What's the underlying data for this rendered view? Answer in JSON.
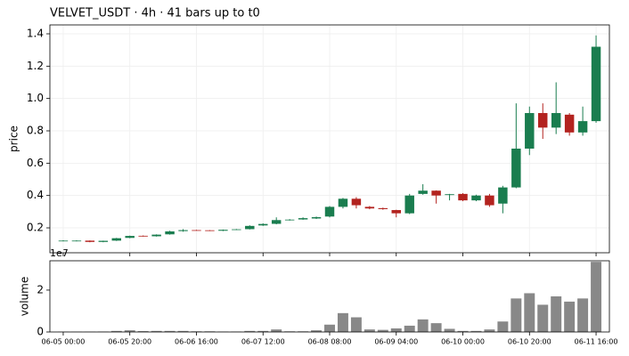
{
  "chart_data": [
    {
      "type": "candlestick",
      "title": "VELVET_USDT  ·  4h  ·  41 bars up to t0",
      "ylabel": "price",
      "categories": [
        "06-05 00:00",
        null,
        null,
        null,
        null,
        "06-05 20:00",
        null,
        null,
        null,
        null,
        "06-06 16:00",
        null,
        null,
        null,
        null,
        "06-07 12:00",
        null,
        null,
        null,
        null,
        "06-08 08:00",
        null,
        null,
        null,
        null,
        "06-09 04:00",
        null,
        null,
        null,
        null,
        "06-10 00:00",
        null,
        null,
        null,
        null,
        "06-10 20:00",
        null,
        null,
        null,
        null,
        "06-11 16:00"
      ],
      "open": [
        0.12,
        0.119,
        0.121,
        0.113,
        0.121,
        0.138,
        0.151,
        0.148,
        0.16,
        0.18,
        0.186,
        0.185,
        0.182,
        0.188,
        0.192,
        0.215,
        0.225,
        0.248,
        0.252,
        0.258,
        0.27,
        0.33,
        0.38,
        0.33,
        0.322,
        0.31,
        0.29,
        0.41,
        0.43,
        0.403,
        0.41,
        0.37,
        0.4,
        0.35,
        0.45,
        0.69,
        0.91,
        0.82,
        0.9,
        0.79,
        0.86
      ],
      "high": [
        0.124,
        0.123,
        0.122,
        0.121,
        0.138,
        0.152,
        0.153,
        0.16,
        0.182,
        0.192,
        0.188,
        0.186,
        0.19,
        0.193,
        0.216,
        0.228,
        0.265,
        0.254,
        0.265,
        0.27,
        0.335,
        0.385,
        0.39,
        0.335,
        0.325,
        0.312,
        0.41,
        0.47,
        0.432,
        0.41,
        0.415,
        0.405,
        0.41,
        0.46,
        0.97,
        0.95,
        0.97,
        1.1,
        0.91,
        0.95,
        1.39
      ],
      "low": [
        0.117,
        0.117,
        0.111,
        0.111,
        0.119,
        0.136,
        0.146,
        0.146,
        0.158,
        0.176,
        0.183,
        0.18,
        0.18,
        0.186,
        0.19,
        0.212,
        0.222,
        0.245,
        0.25,
        0.255,
        0.265,
        0.32,
        0.32,
        0.315,
        0.312,
        0.265,
        0.285,
        0.405,
        0.35,
        0.37,
        0.365,
        0.365,
        0.33,
        0.29,
        0.445,
        0.65,
        0.75,
        0.78,
        0.77,
        0.77,
        0.85
      ],
      "close": [
        0.121,
        0.121,
        0.113,
        0.12,
        0.136,
        0.15,
        0.148,
        0.158,
        0.178,
        0.186,
        0.185,
        0.182,
        0.188,
        0.191,
        0.212,
        0.224,
        0.248,
        0.251,
        0.26,
        0.266,
        0.33,
        0.38,
        0.34,
        0.32,
        0.316,
        0.29,
        0.4,
        0.43,
        0.4,
        0.408,
        0.37,
        0.4,
        0.34,
        0.45,
        0.69,
        0.91,
        0.82,
        0.91,
        0.79,
        0.86,
        1.32
      ],
      "up_color": "#1a7d4f",
      "down_color": "#b3231f",
      "xlim": [
        -1,
        41
      ],
      "ylim": [
        0.046,
        1.455
      ],
      "yticks": [
        0.2,
        0.4,
        0.6,
        0.8,
        {
          "value": 1,
          "label": "1.0"
        },
        1.2,
        1.4
      ],
      "grid": true
    },
    {
      "type": "bar",
      "ylabel": "volume",
      "offset_text": "1e7",
      "values": [
        100000,
        100000,
        100000,
        200000,
        500000,
        800000,
        400000,
        500000,
        500000,
        500000,
        300000,
        300000,
        200000,
        200000,
        500000,
        500000,
        1200000,
        300000,
        300000,
        800000,
        3500000,
        9000000,
        7000000,
        1200000,
        1000000,
        1700000,
        3000000,
        6000000,
        4200000,
        1500000,
        500000,
        500000,
        1200000,
        5000000,
        16000000,
        18500000,
        13000000,
        17000000,
        14500000,
        16000000,
        33500000
      ],
      "color": "#888888",
      "xlim": [
        -1,
        41
      ],
      "ylim": [
        0,
        34000000
      ],
      "yticks": [
        0,
        {
          "value": 20000000,
          "label": "2"
        }
      ],
      "grid": false
    }
  ]
}
